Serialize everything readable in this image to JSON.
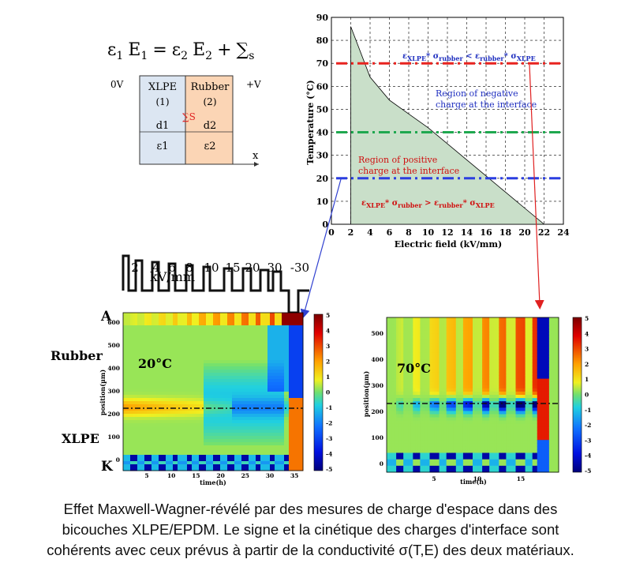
{
  "equation": {
    "lhs": "ε1 E1 = ε2 E2 + ∑s",
    "eps1": "ε",
    "s1": "1",
    "E1": "E",
    "e1": "1",
    "eq": "=",
    "eps2": "ε",
    "s2": "2",
    "E2": "E",
    "e2": "2",
    "plus": "+",
    "sum": "∑",
    "sum_sub": "s"
  },
  "bilayer": {
    "left_voltage": "0V",
    "right_voltage": "+V",
    "layer1_name": "XLPE",
    "layer1_index": "(1)",
    "layer1_thickness": "d1",
    "layer1_perm": "ε1",
    "layer2_name": "Rubber",
    "layer2_index": "(2)",
    "layer2_thickness": "d2",
    "layer2_perm": "ε2",
    "interface_charge": "∑S",
    "axis_label": "x",
    "colors": {
      "xlpe": "#dce6f2",
      "rubber": "#fbd5b5"
    }
  },
  "phase_chart": {
    "ylabel": "Temperature (°C)",
    "xlabel": "Electric field (kV/mm)",
    "negative_region": "Region of negative charge at the interface",
    "positive_region": "Region of positive charge at the interface",
    "condition_top": "εXLPE * σrubber < εrubber * σXLPE",
    "condition_bottom": "εXLPE * σrubber > εrubber * σXLPE"
  },
  "chart_data": {
    "type": "area",
    "xlabel": "Electric field (kV/mm)",
    "ylabel": "Temperature (°C)",
    "xlim": [
      0,
      24
    ],
    "ylim": [
      0,
      90
    ],
    "x_ticks": [
      0,
      2,
      4,
      6,
      8,
      10,
      12,
      14,
      16,
      18,
      20,
      22,
      24
    ],
    "y_ticks": [
      0,
      10,
      20,
      30,
      40,
      50,
      60,
      70,
      80,
      90
    ],
    "grid": true,
    "boundary": {
      "x": [
        2,
        4,
        6,
        8,
        10,
        12,
        14,
        16,
        18,
        20,
        22
      ],
      "y": [
        86,
        64,
        54,
        48,
        42,
        35,
        28,
        21,
        14,
        7,
        0
      ]
    },
    "hlines": [
      {
        "y": 70,
        "color": "#e8231f"
      },
      {
        "y": 40,
        "color": "#1fa84f"
      },
      {
        "y": 20,
        "color": "#2b3ee0"
      }
    ],
    "fill_color": "#c9dfc9"
  },
  "protocol": {
    "steps": [
      "2",
      "4",
      "6",
      "8",
      "10",
      "15",
      "20",
      "30",
      "-30"
    ],
    "unit": "kV/mm"
  },
  "map_left": {
    "temperature": "20°C",
    "label_top": "A",
    "label_bottom": "K",
    "region_top": "Rubber",
    "region_bottom": "XLPE",
    "ylabel": "position(µm)",
    "xlabel": "time(h)",
    "y_ticks": [
      "600",
      "500",
      "400",
      "300",
      "200",
      "100",
      "0"
    ],
    "x_ticks": [
      "5",
      "10",
      "15",
      "20",
      "25",
      "30",
      "35"
    ],
    "cbar_ticks": [
      "5",
      "4",
      "3",
      "2",
      "1",
      "0",
      "-1",
      "-2",
      "-3",
      "-4",
      "-5"
    ]
  },
  "map_right": {
    "temperature": "70°C",
    "ylabel": "position(µm)",
    "xlabel": "time(h)",
    "y_ticks": [
      "500",
      "400",
      "300",
      "200",
      "100",
      "0"
    ],
    "x_ticks": [
      "5",
      "10",
      "15"
    ],
    "cbar_ticks": [
      "5",
      "4",
      "3",
      "2",
      "1",
      "0",
      "-1",
      "-2",
      "-3",
      "-4",
      "-5"
    ]
  },
  "caption": {
    "line1": "Effet Maxwell-Wagner-révélé par des mesures de charge d'espace dans des",
    "line2": "bicouches XLPE/EPDM. Le signe et la cinétique des charges d'interface sont",
    "line3": "cohérents avec ceux prévus à partir de la conductivité σ(T,E) des deux matériaux."
  }
}
